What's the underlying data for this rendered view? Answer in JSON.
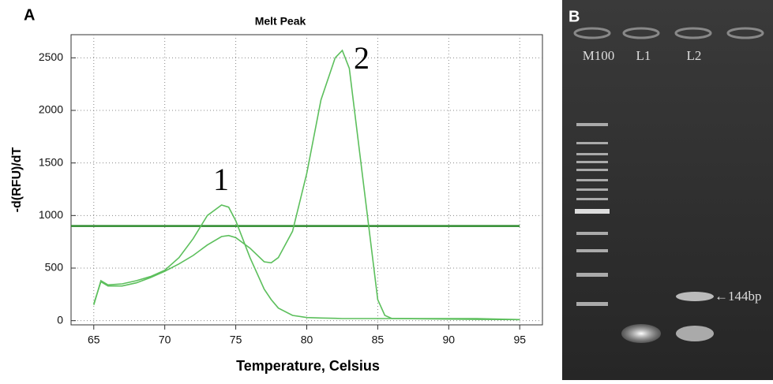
{
  "panel_labels": [
    "A",
    "B"
  ],
  "chart_data": {
    "type": "line",
    "title": "Melt Peak",
    "x_label": "Temperature, Celsius",
    "y_label": "-d(RFU)/dT",
    "x": [
      65,
      65.5,
      66,
      67,
      68,
      69,
      70,
      71,
      72,
      73,
      74,
      74.5,
      75,
      76,
      77,
      77.5,
      78,
      79,
      80,
      81,
      82,
      82.5,
      83,
      84,
      85,
      85.5,
      86,
      88,
      90,
      92,
      95
    ],
    "series": [
      {
        "color": "#5cbf5c",
        "values": [
          150,
          380,
          340,
          350,
          380,
          420,
          480,
          600,
          780,
          1000,
          1100,
          1080,
          950,
          600,
          300,
          200,
          120,
          50,
          30,
          25,
          22,
          20,
          20,
          20,
          20,
          20,
          20,
          18,
          15,
          12,
          10
        ]
      },
      {
        "color": "#5cbf5c",
        "values": [
          160,
          370,
          330,
          330,
          360,
          410,
          470,
          540,
          620,
          720,
          800,
          810,
          790,
          690,
          560,
          550,
          600,
          850,
          1400,
          2100,
          2500,
          2570,
          2400,
          1300,
          200,
          50,
          20,
          20,
          20,
          20,
          10
        ]
      }
    ],
    "threshold": 900,
    "threshold_color": "#2e8b2e",
    "annotations": [
      "1",
      "2"
    ],
    "xlim": [
      63.4,
      96.6
    ],
    "xticks": [
      65,
      70,
      75,
      80,
      85,
      90,
      95
    ],
    "ylim": [
      -40,
      2720
    ],
    "yticks": [
      0,
      500,
      1000,
      1500,
      2000,
      2500
    ],
    "grid": true
  },
  "gel": {
    "lanes": [
      "M100",
      "L1",
      "L2"
    ],
    "band_label": "←144bp"
  }
}
